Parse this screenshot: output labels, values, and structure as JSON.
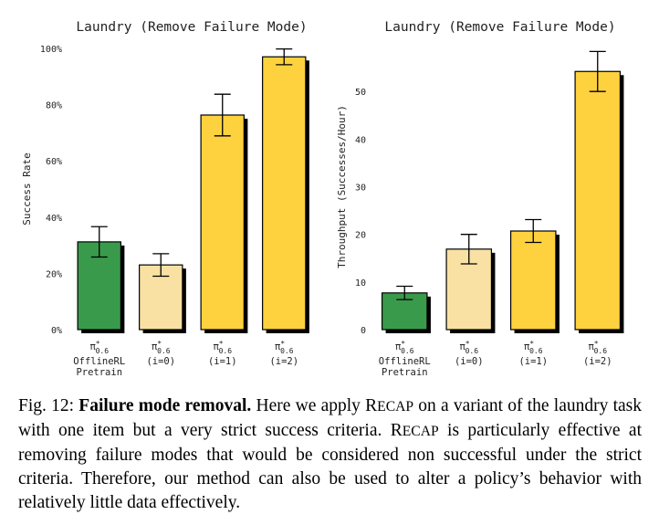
{
  "chart_data": [
    {
      "type": "bar",
      "title": "Laundry (Remove Failure Mode)",
      "y_label": "Success Rate",
      "categories": [
        {
          "base": "π",
          "sup": "*",
          "sub": "0.6",
          "note": [
            "OfflineRL",
            "Pretrain"
          ]
        },
        {
          "base": "π",
          "sup": "*",
          "sub": "0.6",
          "note": [
            "(i=0)"
          ]
        },
        {
          "base": "π",
          "sup": "*",
          "sub": "0.6",
          "note": [
            "(i=1)"
          ]
        },
        {
          "base": "π",
          "sup": "*",
          "sub": "0.6",
          "note": [
            "(i=2)"
          ]
        }
      ],
      "values": [
        31.2,
        23,
        76.3,
        97
      ],
      "errors": [
        5.4,
        4,
        7.4,
        2.8
      ],
      "colors": [
        "#3a9a4c",
        "#f9e1a3",
        "#fdd23e",
        "#fdd23e"
      ],
      "ylim": [
        0,
        100
      ],
      "yticks": [
        {
          "value": 0,
          "label": "0%"
        },
        {
          "value": 20,
          "label": "20%"
        },
        {
          "value": 40,
          "label": "40%"
        },
        {
          "value": 60,
          "label": "60%"
        },
        {
          "value": 80,
          "label": "80%"
        },
        {
          "value": 100,
          "label": "100%"
        }
      ]
    },
    {
      "type": "bar",
      "title": "Laundry (Remove Failure Mode)",
      "y_label": "Throughput (Successes/Hour)",
      "categories": [
        {
          "base": "π",
          "sup": "*",
          "sub": "0.6",
          "note": [
            "OfflineRL",
            "Pretrain"
          ]
        },
        {
          "base": "π",
          "sup": "*",
          "sub": "0.6",
          "note": [
            "(i=0)"
          ]
        },
        {
          "base": "π",
          "sup": "*",
          "sub": "0.6",
          "note": [
            "(i=1)"
          ]
        },
        {
          "base": "π",
          "sup": "*",
          "sub": "0.6",
          "note": [
            "(i=2)"
          ]
        }
      ],
      "values": [
        7.7,
        16.9,
        20.7,
        54.2
      ],
      "errors": [
        1.4,
        3.1,
        2.4,
        4.2
      ],
      "colors": [
        "#3a9a4c",
        "#f9e1a3",
        "#fdd23e",
        "#fdd23e"
      ],
      "ylim": [
        0,
        60
      ],
      "yticks": [
        0,
        10,
        20,
        30,
        40,
        50
      ]
    }
  ],
  "caption": {
    "label": "Fig. 12:",
    "heading": "Failure mode removal.",
    "parts": [
      "Here we apply ",
      "RECAP",
      " on a variant of the laundry task with one item but a very strict success criteria. ",
      "RECAP",
      " is particularly effective at removing failure modes that would be considered non successful under the strict criteria. Therefore, our method can also be used to alter a policy’s behavior with relatively little data effectively."
    ]
  }
}
